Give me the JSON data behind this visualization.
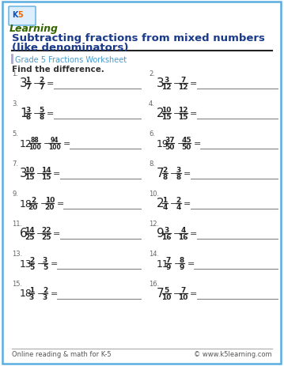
{
  "title_line1": "Subtracting fractions from mixed numbers",
  "title_line2": "(like denominators)",
  "subtitle": "Grade 5 Fractions Worksheet",
  "instruction": "Find the difference.",
  "bg_color": "#ffffff",
  "border_color": "#5aade0",
  "title_color": "#1a3a8a",
  "subtitle_color": "#4499cc",
  "text_color": "#333333",
  "num_color": "#555555",
  "footer_left": "Online reading & math for K-5",
  "footer_right": "© www.k5learning.com",
  "problems": [
    {
      "num": "1",
      "whole1": "3",
      "n1": "1",
      "d1": "7",
      "n2": "2",
      "d2": "7"
    },
    {
      "num": "2",
      "whole1": "3",
      "n1": "3",
      "d1": "12",
      "n2": "7",
      "d2": "12"
    },
    {
      "num": "3",
      "whole1": "1",
      "n1": "3",
      "d1": "8",
      "n2": "5",
      "d2": "8"
    },
    {
      "num": "4",
      "whole1": "2",
      "n1": "10",
      "d1": "15",
      "n2": "12",
      "d2": "15"
    },
    {
      "num": "5",
      "whole1": "12",
      "n1": "88",
      "d1": "100",
      "n2": "94",
      "d2": "100"
    },
    {
      "num": "6",
      "whole1": "19",
      "n1": "37",
      "d1": "50",
      "n2": "45",
      "d2": "50"
    },
    {
      "num": "7",
      "whole1": "3",
      "n1": "10",
      "d1": "15",
      "n2": "14",
      "d2": "15"
    },
    {
      "num": "8",
      "whole1": "7",
      "n1": "2",
      "d1": "8",
      "n2": "3",
      "d2": "8"
    },
    {
      "num": "9",
      "whole1": "18",
      "n1": "2",
      "d1": "20",
      "n2": "10",
      "d2": "20"
    },
    {
      "num": "10",
      "whole1": "2",
      "n1": "1",
      "d1": "4",
      "n2": "2",
      "d2": "4"
    },
    {
      "num": "11",
      "whole1": "6",
      "n1": "14",
      "d1": "25",
      "n2": "22",
      "d2": "25"
    },
    {
      "num": "12",
      "whole1": "9",
      "n1": "3",
      "d1": "16",
      "n2": "4",
      "d2": "16"
    },
    {
      "num": "13",
      "whole1": "13",
      "n1": "2",
      "d1": "5",
      "n2": "3",
      "d2": "5"
    },
    {
      "num": "14",
      "whole1": "11",
      "n1": "7",
      "d1": "9",
      "n2": "8",
      "d2": "9"
    },
    {
      "num": "15",
      "whole1": "18",
      "n1": "1",
      "d1": "3",
      "n2": "2",
      "d2": "3"
    },
    {
      "num": "16",
      "whole1": "7",
      "n1": "5",
      "d1": "10",
      "n2": "7",
      "d2": "10"
    }
  ]
}
